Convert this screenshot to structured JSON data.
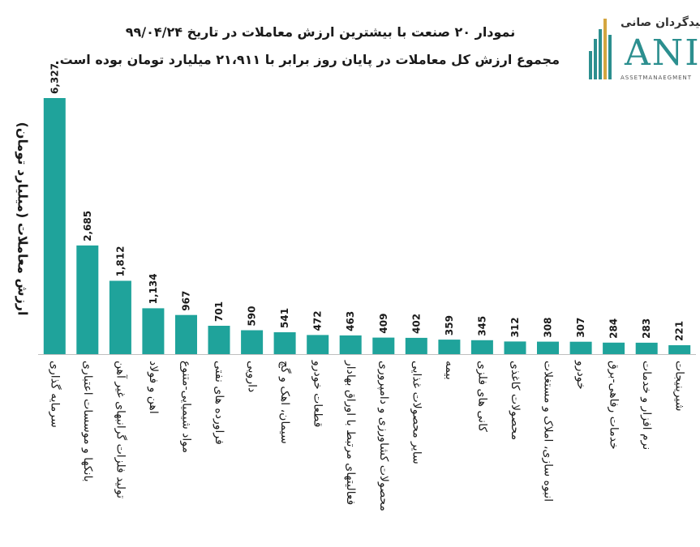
{
  "chart_data": {
    "type": "bar",
    "title": "نمودار  ۲۰ صنعت با بیشترین ارزش معاملات در تاریخ ۹۹/۰۴/۲۴",
    "subtitle": "مجموع ارزش  کل معاملات در پایان روز برابر با ۲۱،۹۱۱ میلیارد تومان بوده است.",
    "ylabel": "ارزش معاملات (میلیارد تومان)",
    "xlabel": "",
    "categories": [
      "سرمایه گذاری",
      "بانکها و موسسات اعتباری",
      "تولید فلزات گرانبهای غیر آهن",
      "اهن و فولاد",
      "مواد شیمیایی-متنوع",
      "فراورده های نفتی",
      "دارویی",
      "سیمان، اهک و گچ",
      "قطعات خودرو",
      "فعالیتهای مرتبط با اوراق بهادار",
      "محصولات کشاورزی و دامپروری",
      "سایر محصولات غذایی",
      "بیمه",
      "کانی های فلزی",
      "محصولات کاغذی",
      "انبوه سازی، املاک و مستغلات",
      "خودرو",
      "خدمات رفاهی-برق",
      "نرم افزار و خدمات",
      "شیرینیجات"
    ],
    "values": [
      6327,
      2685,
      1812,
      1134,
      967,
      701,
      590,
      541,
      472,
      463,
      409,
      402,
      359,
      345,
      312,
      308,
      307,
      284,
      283,
      221
    ],
    "value_labels": [
      "6,327",
      "2,685",
      "1,812",
      "1,134",
      "967",
      "701",
      "590",
      "541",
      "472",
      "463",
      "409",
      "402",
      "359",
      "345",
      "312",
      "308",
      "307",
      "284",
      "283",
      "221"
    ],
    "ylim": [
      0,
      6400
    ],
    "grid": false,
    "legend": "none",
    "bar_color": "#1fa39b"
  },
  "logo": {
    "line1": "سیدگردان صانی",
    "line2": "ANI",
    "line3": "ASSETMANAEGMENT"
  }
}
